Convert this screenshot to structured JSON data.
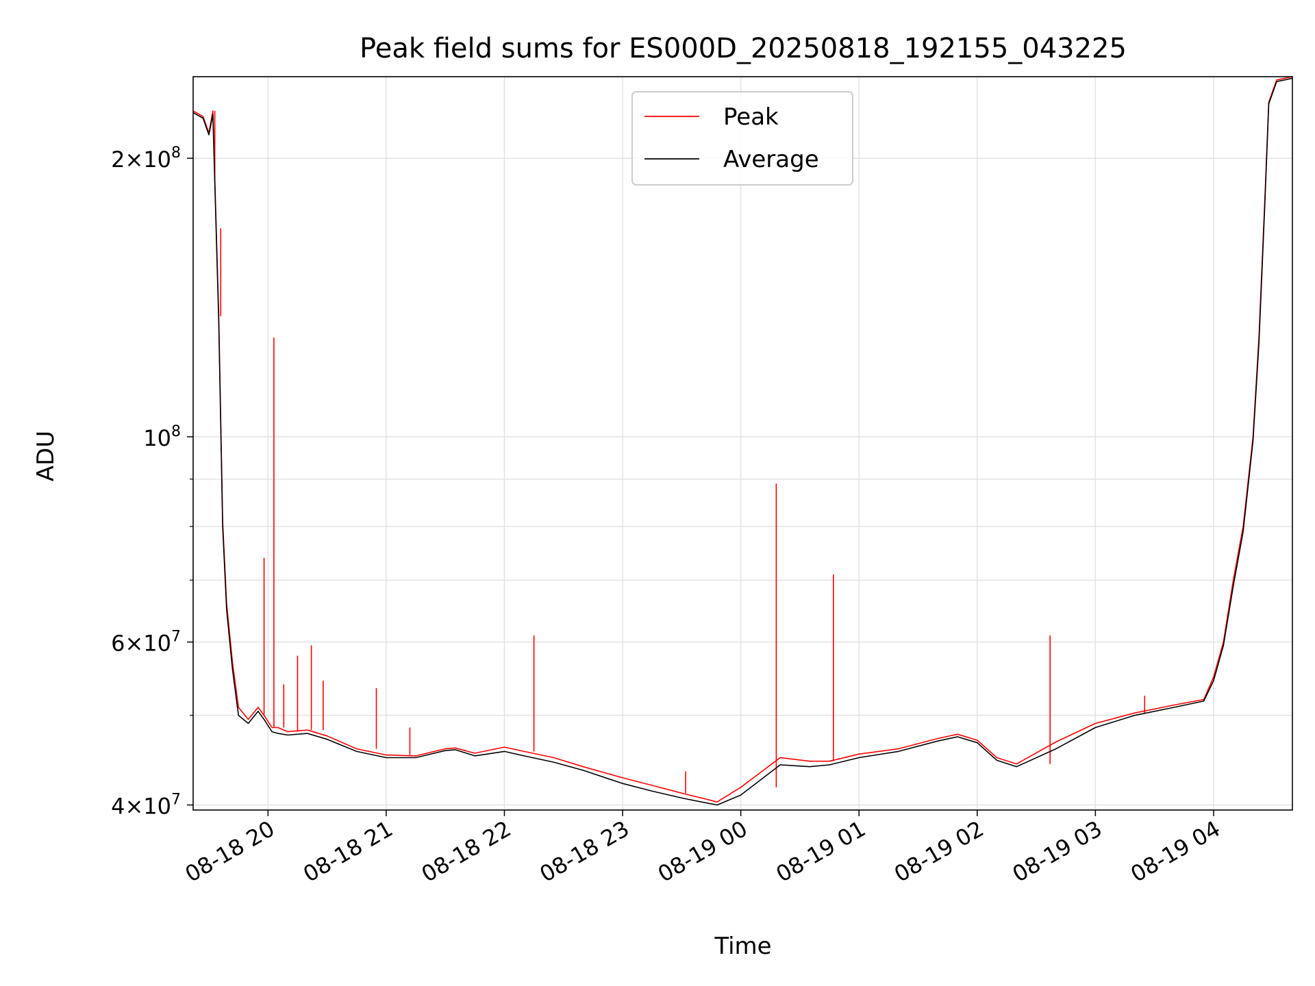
{
  "chart_data": {
    "type": "line",
    "title": "Peak field sums for ES000D_20250818_192155_043225",
    "xlabel": "Time",
    "ylabel": "ADU",
    "yscale": "log",
    "ylim": [
      39500000,
      245000000
    ],
    "xlim": [
      "2025-08-18 19:22",
      "2025-08-19 04:40"
    ],
    "grid": true,
    "legend_position": "upper center",
    "x_ticks": [
      {
        "t": "2025-08-18 20:00",
        "label": "08-18 20"
      },
      {
        "t": "2025-08-18 21:00",
        "label": "08-18 21"
      },
      {
        "t": "2025-08-18 22:00",
        "label": "08-18 22"
      },
      {
        "t": "2025-08-18 23:00",
        "label": "08-18 23"
      },
      {
        "t": "2025-08-19 00:00",
        "label": "08-19 00"
      },
      {
        "t": "2025-08-19 01:00",
        "label": "08-19 01"
      },
      {
        "t": "2025-08-19 02:00",
        "label": "08-19 02"
      },
      {
        "t": "2025-08-19 03:00",
        "label": "08-19 03"
      },
      {
        "t": "2025-08-19 04:00",
        "label": "08-19 04"
      }
    ],
    "y_ticks": [
      {
        "value": 40000000,
        "mant": "4",
        "exp": "7"
      },
      {
        "value": 60000000,
        "mant": "6",
        "exp": "7"
      },
      {
        "value": 100000000,
        "mant": "",
        "exp": "8"
      },
      {
        "value": 200000000,
        "mant": "2",
        "exp": "8"
      }
    ],
    "y_minor_ticks": [
      50000000,
      70000000,
      80000000,
      90000000
    ],
    "series": [
      {
        "name": "Peak",
        "color": "#ff0000",
        "x": [
          "2025-08-18 19:22",
          "2025-08-18 19:27",
          "2025-08-18 19:30",
          "2025-08-18 19:32",
          "2025-08-18 19:35",
          "2025-08-18 19:37",
          "2025-08-18 19:39",
          "2025-08-18 19:42",
          "2025-08-18 19:45",
          "2025-08-18 19:50",
          "2025-08-18 19:55",
          "2025-08-18 19:58",
          "2025-08-18 20:02",
          "2025-08-18 20:05",
          "2025-08-18 20:10",
          "2025-08-18 20:20",
          "2025-08-18 20:30",
          "2025-08-18 20:45",
          "2025-08-18 21:00",
          "2025-08-18 21:15",
          "2025-08-18 21:30",
          "2025-08-18 21:35",
          "2025-08-18 21:45",
          "2025-08-18 22:00",
          "2025-08-18 22:10",
          "2025-08-18 22:25",
          "2025-08-18 22:40",
          "2025-08-18 23:00",
          "2025-08-18 23:15",
          "2025-08-18 23:30",
          "2025-08-18 23:40",
          "2025-08-18 23:48",
          "2025-08-19 00:00",
          "2025-08-19 00:20",
          "2025-08-19 00:35",
          "2025-08-19 00:45",
          "2025-08-19 01:00",
          "2025-08-19 01:20",
          "2025-08-19 01:40",
          "2025-08-19 01:50",
          "2025-08-19 02:00",
          "2025-08-19 02:10",
          "2025-08-19 02:20",
          "2025-08-19 02:40",
          "2025-08-19 03:00",
          "2025-08-19 03:20",
          "2025-08-19 03:40",
          "2025-08-19 03:55",
          "2025-08-19 04:00",
          "2025-08-19 04:05",
          "2025-08-19 04:10",
          "2025-08-19 04:15",
          "2025-08-19 04:20",
          "2025-08-19 04:23",
          "2025-08-19 04:26",
          "2025-08-19 04:28",
          "2025-08-19 04:32",
          "2025-08-19 04:40"
        ],
        "y": [
          225000000,
          222000000,
          213000000,
          225000000,
          135000000,
          81000000,
          66000000,
          57000000,
          51000000,
          49500000,
          51000000,
          50000000,
          48500000,
          48500000,
          48000000,
          48200000,
          47500000,
          46000000,
          45300000,
          45200000,
          46000000,
          46100000,
          45500000,
          46200000,
          45700000,
          45000000,
          44000000,
          42800000,
          42000000,
          41200000,
          40700000,
          40300000,
          41800000,
          45000000,
          44600000,
          44600000,
          45400000,
          46000000,
          47200000,
          47700000,
          47000000,
          45000000,
          44300000,
          46800000,
          49000000,
          50300000,
          51300000,
          52000000,
          55000000,
          60000000,
          70000000,
          80000000,
          100000000,
          128000000,
          180000000,
          230000000,
          243000000,
          245000000
        ]
      },
      {
        "name": "Average",
        "color": "#000000",
        "x": [
          "2025-08-18 19:22",
          "2025-08-18 19:27",
          "2025-08-18 19:30",
          "2025-08-18 19:32",
          "2025-08-18 19:35",
          "2025-08-18 19:37",
          "2025-08-18 19:39",
          "2025-08-18 19:42",
          "2025-08-18 19:45",
          "2025-08-18 19:50",
          "2025-08-18 19:55",
          "2025-08-18 19:58",
          "2025-08-18 20:02",
          "2025-08-18 20:05",
          "2025-08-18 20:10",
          "2025-08-18 20:20",
          "2025-08-18 20:30",
          "2025-08-18 20:45",
          "2025-08-18 21:00",
          "2025-08-18 21:15",
          "2025-08-18 21:30",
          "2025-08-18 21:35",
          "2025-08-18 21:45",
          "2025-08-18 22:00",
          "2025-08-18 22:10",
          "2025-08-18 22:25",
          "2025-08-18 22:40",
          "2025-08-18 23:00",
          "2025-08-18 23:15",
          "2025-08-18 23:30",
          "2025-08-18 23:40",
          "2025-08-18 23:48",
          "2025-08-19 00:00",
          "2025-08-19 00:20",
          "2025-08-19 00:35",
          "2025-08-19 00:45",
          "2025-08-19 01:00",
          "2025-08-19 01:20",
          "2025-08-19 01:40",
          "2025-08-19 01:50",
          "2025-08-19 02:00",
          "2025-08-19 02:10",
          "2025-08-19 02:20",
          "2025-08-19 02:40",
          "2025-08-19 03:00",
          "2025-08-19 03:20",
          "2025-08-19 03:40",
          "2025-08-19 03:55",
          "2025-08-19 04:00",
          "2025-08-19 04:05",
          "2025-08-19 04:10",
          "2025-08-19 04:15",
          "2025-08-19 04:20",
          "2025-08-19 04:23",
          "2025-08-19 04:26",
          "2025-08-19 04:28",
          "2025-08-19 04:32",
          "2025-08-19 04:40"
        ],
        "y": [
          224000000,
          221000000,
          212000000,
          223000000,
          133000000,
          80000000,
          65000000,
          56000000,
          50000000,
          49000000,
          50500000,
          49500000,
          48000000,
          47800000,
          47600000,
          47800000,
          47100000,
          45700000,
          45000000,
          45000000,
          45800000,
          45900000,
          45200000,
          45700000,
          45200000,
          44500000,
          43600000,
          42200000,
          41400000,
          40700000,
          40300000,
          40000000,
          41000000,
          44200000,
          44000000,
          44200000,
          45000000,
          45700000,
          46900000,
          47400000,
          46700000,
          44700000,
          44000000,
          46000000,
          48500000,
          50000000,
          51000000,
          51800000,
          54500000,
          59500000,
          69000000,
          79000000,
          99000000,
          126000000,
          178000000,
          229000000,
          242000000,
          244000000
        ]
      }
    ],
    "spikes": [
      {
        "t": "2025-08-18 19:33",
        "value": 188000000
      },
      {
        "t": "2025-08-18 19:36",
        "value": 168000000
      },
      {
        "t": "2025-08-18 19:58",
        "value": 74000000
      },
      {
        "t": "2025-08-18 20:03",
        "value": 128000000
      },
      {
        "t": "2025-08-18 20:08",
        "value": 54000000
      },
      {
        "t": "2025-08-18 20:15",
        "value": 58000000
      },
      {
        "t": "2025-08-18 20:22",
        "value": 59500000
      },
      {
        "t": "2025-08-18 20:28",
        "value": 54500000
      },
      {
        "t": "2025-08-18 20:55",
        "value": 53500000
      },
      {
        "t": "2025-08-18 21:12",
        "value": 48500000
      },
      {
        "t": "2025-08-18 22:15",
        "value": 61000000
      },
      {
        "t": "2025-08-18 23:32",
        "value": 43500000
      },
      {
        "t": "2025-08-19 00:18",
        "value": 89000000
      },
      {
        "t": "2025-08-19 00:47",
        "value": 71000000
      },
      {
        "t": "2025-08-19 02:37",
        "value": 61000000
      },
      {
        "t": "2025-08-19 03:25",
        "value": 52500000
      }
    ],
    "legend": [
      {
        "label": "Peak",
        "color": "#ff0000"
      },
      {
        "label": "Average",
        "color": "#000000"
      }
    ]
  }
}
